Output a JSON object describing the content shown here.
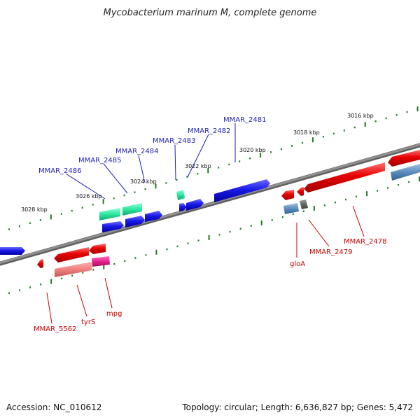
{
  "title": "Mycobacterium marinum M, complete genome",
  "colors": {
    "backbone": "#808080",
    "ticks": "#1f7a1f",
    "forward_gene": "#1a1ae6",
    "forward_label": "#1f1fb4",
    "reverse_gene": "#e60000",
    "reverse_label": "#c80000",
    "rrna": "#2ee6a0",
    "pseudo": "#f08080",
    "trna": "#e6208c",
    "cds_blue": "#5a8cbe",
    "misc_gray": "#666666"
  },
  "kbp_labels": [
    "3016 kbp",
    "3018 kbp",
    "3020 kbp",
    "3022 kbp",
    "3024 kbp",
    "3026 kbp",
    "3028 kbp"
  ],
  "forward_gene_labels": [
    "MMAR_2481",
    "MMAR_2482",
    "MMAR_2483",
    "MMAR_2484",
    "MMAR_2485",
    "MMAR_2486"
  ],
  "reverse_gene_labels": [
    "MMAR_2478",
    "MMAR_2479",
    "gloA",
    "mpg",
    "tyrS",
    "MMAR_5562"
  ],
  "footer": {
    "accession": "Accession: NC_010612",
    "topology": "Topology: circular; Length: 6,636,827 bp; Genes: 5,472"
  }
}
